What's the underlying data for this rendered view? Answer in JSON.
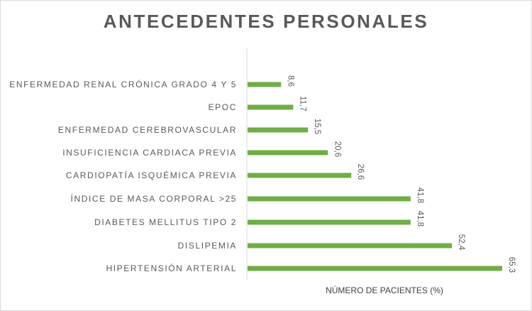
{
  "chart_data": {
    "type": "bar",
    "orientation": "horizontal",
    "title": "ANTECEDENTES PERSONALES",
    "xlabel": "NÚMERO DE PACIENTES (%)",
    "ylabel": "",
    "categories": [
      "ENFERMEDAD RENAL CRÓNICA GRADO 4 Y 5",
      "EPOC",
      "ENFERMEDAD CEREBROVASCULAR",
      "INSUFICIENCIA CARDIACA PREVIA",
      "CARDIOPATÍA ISQUÉMICA PREVIA",
      "ÍNDICE DE MASA CORPORAL >25",
      "DIABETES MELLITUS TIPO 2",
      "DISLIPEMIA",
      "HIPERTENSIÓN ARTERIAL"
    ],
    "values": [
      8.6,
      11.7,
      15.5,
      20.6,
      26.6,
      41.8,
      41.8,
      52.4,
      65.3
    ],
    "value_labels": [
      "8,6",
      "11,7",
      "15,5",
      "20,6",
      "26,6",
      "41,8",
      "41,8",
      "52,4",
      "65,3"
    ],
    "xlim": [
      0,
      70
    ],
    "bar_color": "#70ad47",
    "text_color": "#595959",
    "axis_color": "#d9d9d9",
    "grid": false,
    "legend": "none"
  }
}
